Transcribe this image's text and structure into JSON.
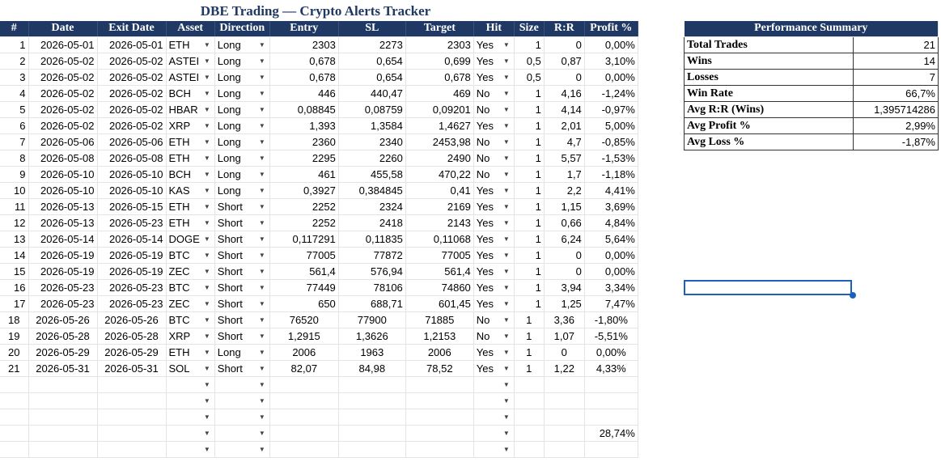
{
  "title": "DBE Trading — Crypto Alerts Tracker",
  "headers": [
    "#",
    "Date",
    "Exit Date",
    "Asset",
    "Direction",
    "Entry",
    "SL",
    "Target",
    "Hit",
    "Size",
    "R:R",
    "Profit %"
  ],
  "rows": [
    [
      "1",
      "2026-05-01",
      "2026-05-01",
      "ETH",
      "Long",
      "2303",
      "2273",
      "2303",
      "Yes",
      "1",
      "0",
      "0,00%"
    ],
    [
      "2",
      "2026-05-02",
      "2026-05-02",
      "ASTEI",
      "Long",
      "0,678",
      "0,654",
      "0,699",
      "Yes",
      "0,5",
      "0,87",
      "3,10%"
    ],
    [
      "3",
      "2026-05-02",
      "2026-05-02",
      "ASTEI",
      "Long",
      "0,678",
      "0,654",
      "0,678",
      "Yes",
      "0,5",
      "0",
      "0,00%"
    ],
    [
      "4",
      "2026-05-02",
      "2026-05-02",
      "BCH",
      "Long",
      "446",
      "440,47",
      "469",
      "No",
      "1",
      "4,16",
      "-1,24%"
    ],
    [
      "5",
      "2026-05-02",
      "2026-05-02",
      "HBAR",
      "Long",
      "0,08845",
      "0,08759",
      "0,09201",
      "No",
      "1",
      "4,14",
      "-0,97%"
    ],
    [
      "6",
      "2026-05-02",
      "2026-05-02",
      "XRP",
      "Long",
      "1,393",
      "1,3584",
      "1,4627",
      "Yes",
      "1",
      "2,01",
      "5,00%"
    ],
    [
      "7",
      "2026-05-06",
      "2026-05-06",
      "ETH",
      "Long",
      "2360",
      "2340",
      "2453,98",
      "No",
      "1",
      "4,7",
      "-0,85%"
    ],
    [
      "8",
      "2026-05-08",
      "2026-05-08",
      "ETH",
      "Long",
      "2295",
      "2260",
      "2490",
      "No",
      "1",
      "5,57",
      "-1,53%"
    ],
    [
      "9",
      "2026-05-10",
      "2026-05-10",
      "BCH",
      "Long",
      "461",
      "455,58",
      "470,22",
      "No",
      "1",
      "1,7",
      "-1,18%"
    ],
    [
      "10",
      "2026-05-10",
      "2026-05-10",
      "KAS",
      "Long",
      "0,3927",
      "0,384845",
      "0,41",
      "Yes",
      "1",
      "2,2",
      "4,41%"
    ],
    [
      "11",
      "2026-05-13",
      "2026-05-15",
      "ETH",
      "Short",
      "2252",
      "2324",
      "2169",
      "Yes",
      "1",
      "1,15",
      "3,69%"
    ],
    [
      "12",
      "2026-05-13",
      "2026-05-23",
      "ETH",
      "Short",
      "2252",
      "2418",
      "2143",
      "Yes",
      "1",
      "0,66",
      "4,84%"
    ],
    [
      "13",
      "2026-05-14",
      "2026-05-14",
      "DOGE",
      "Short",
      "0,117291",
      "0,11835",
      "0,11068",
      "Yes",
      "1",
      "6,24",
      "5,64%"
    ],
    [
      "14",
      "2026-05-19",
      "2026-05-19",
      "BTC",
      "Short",
      "77005",
      "77872",
      "77005",
      "Yes",
      "1",
      "0",
      "0,00%"
    ],
    [
      "15",
      "2026-05-19",
      "2026-05-19",
      "ZEC",
      "Short",
      "561,4",
      "576,94",
      "561,4",
      "Yes",
      "1",
      "0",
      "0,00%"
    ],
    [
      "16",
      "2026-05-23",
      "2026-05-23",
      "BTC",
      "Short",
      "77449",
      "78106",
      "74860",
      "Yes",
      "1",
      "3,94",
      "3,34%"
    ],
    [
      "17",
      "2026-05-23",
      "2026-05-23",
      "ZEC",
      "Short",
      "650",
      "688,71",
      "601,45",
      "Yes",
      "1",
      "1,25",
      "7,47%"
    ],
    [
      "18",
      "2026-05-26",
      "2026-05-26",
      "BTC",
      "Short",
      "76520",
      "77900",
      "71885",
      "No",
      "1",
      "3,36",
      "-1,80%"
    ],
    [
      "19",
      "2026-05-28",
      "2026-05-28",
      "XRP",
      "Short",
      "1,2915",
      "1,3626",
      "1,2153",
      "No",
      "1",
      "1,07",
      "-5,51%"
    ],
    [
      "20",
      "2026-05-29",
      "2026-05-29",
      "ETH",
      "Long",
      "2006",
      "1963",
      "2006",
      "Yes",
      "1",
      "0",
      "0,00%"
    ],
    [
      "21",
      "2026-05-31",
      "2026-05-31",
      "SOL",
      "Short",
      "82,07",
      "84,98",
      "78,52",
      "Yes",
      "1",
      "1,22",
      "4,33%"
    ]
  ],
  "profit_total": "28,74%",
  "summary": {
    "title": "Performance Summary",
    "rows": [
      {
        "label": "Total Trades",
        "value": "21"
      },
      {
        "label": "Wins",
        "value": "14"
      },
      {
        "label": "Losses",
        "value": "7"
      },
      {
        "label": "Win Rate",
        "value": "66,7%"
      },
      {
        "label": "Avg R:R (Wins)",
        "value": "1,395714286"
      },
      {
        "label": "Avg Profit %",
        "value": "2,99%"
      },
      {
        "label": "Avg Loss %",
        "value": "-1,87%"
      }
    ]
  },
  "icons": {
    "dropdown": "dropdown-arrow-icon",
    "fill_handle": "fill-handle-icon"
  },
  "colors": {
    "header_bg": "#1f3864",
    "header_text": "#ffffff",
    "title": "#1f3864",
    "selection": "#1f5fbf"
  }
}
